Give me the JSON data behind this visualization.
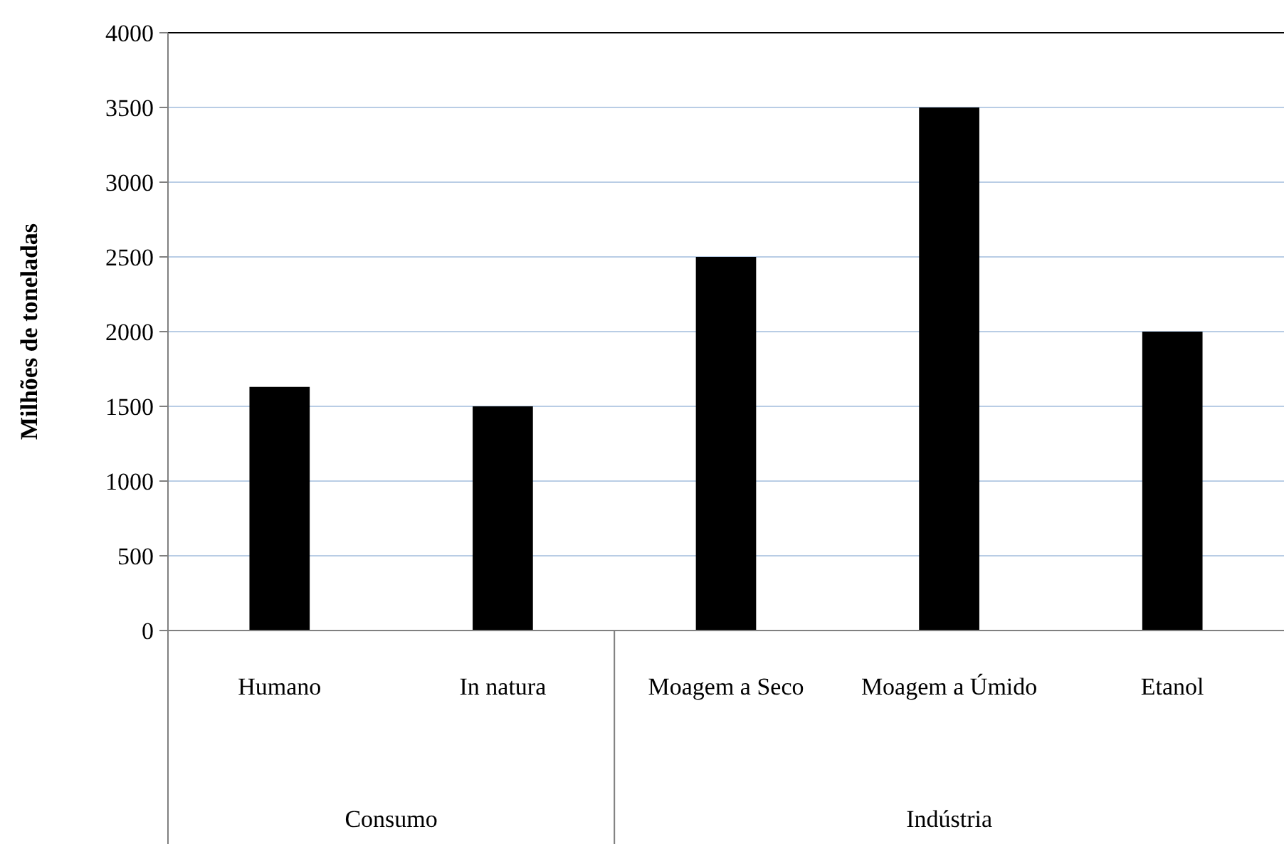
{
  "chart_data": {
    "type": "bar",
    "ylabel": "Milhões de toneladas",
    "categories": [
      "Humano",
      "In natura",
      "Moagem a Seco",
      "Moagem a Úmido",
      "Etanol"
    ],
    "values": [
      1630,
      1500,
      2500,
      3500,
      2000
    ],
    "color": "#000000",
    "ylim": [
      0,
      4000
    ],
    "yticks": [
      0,
      500,
      1000,
      1500,
      2000,
      2500,
      3000,
      3500,
      4000
    ],
    "grid": "y",
    "annotations": [
      "Consumo",
      "Indústria"
    ]
  }
}
